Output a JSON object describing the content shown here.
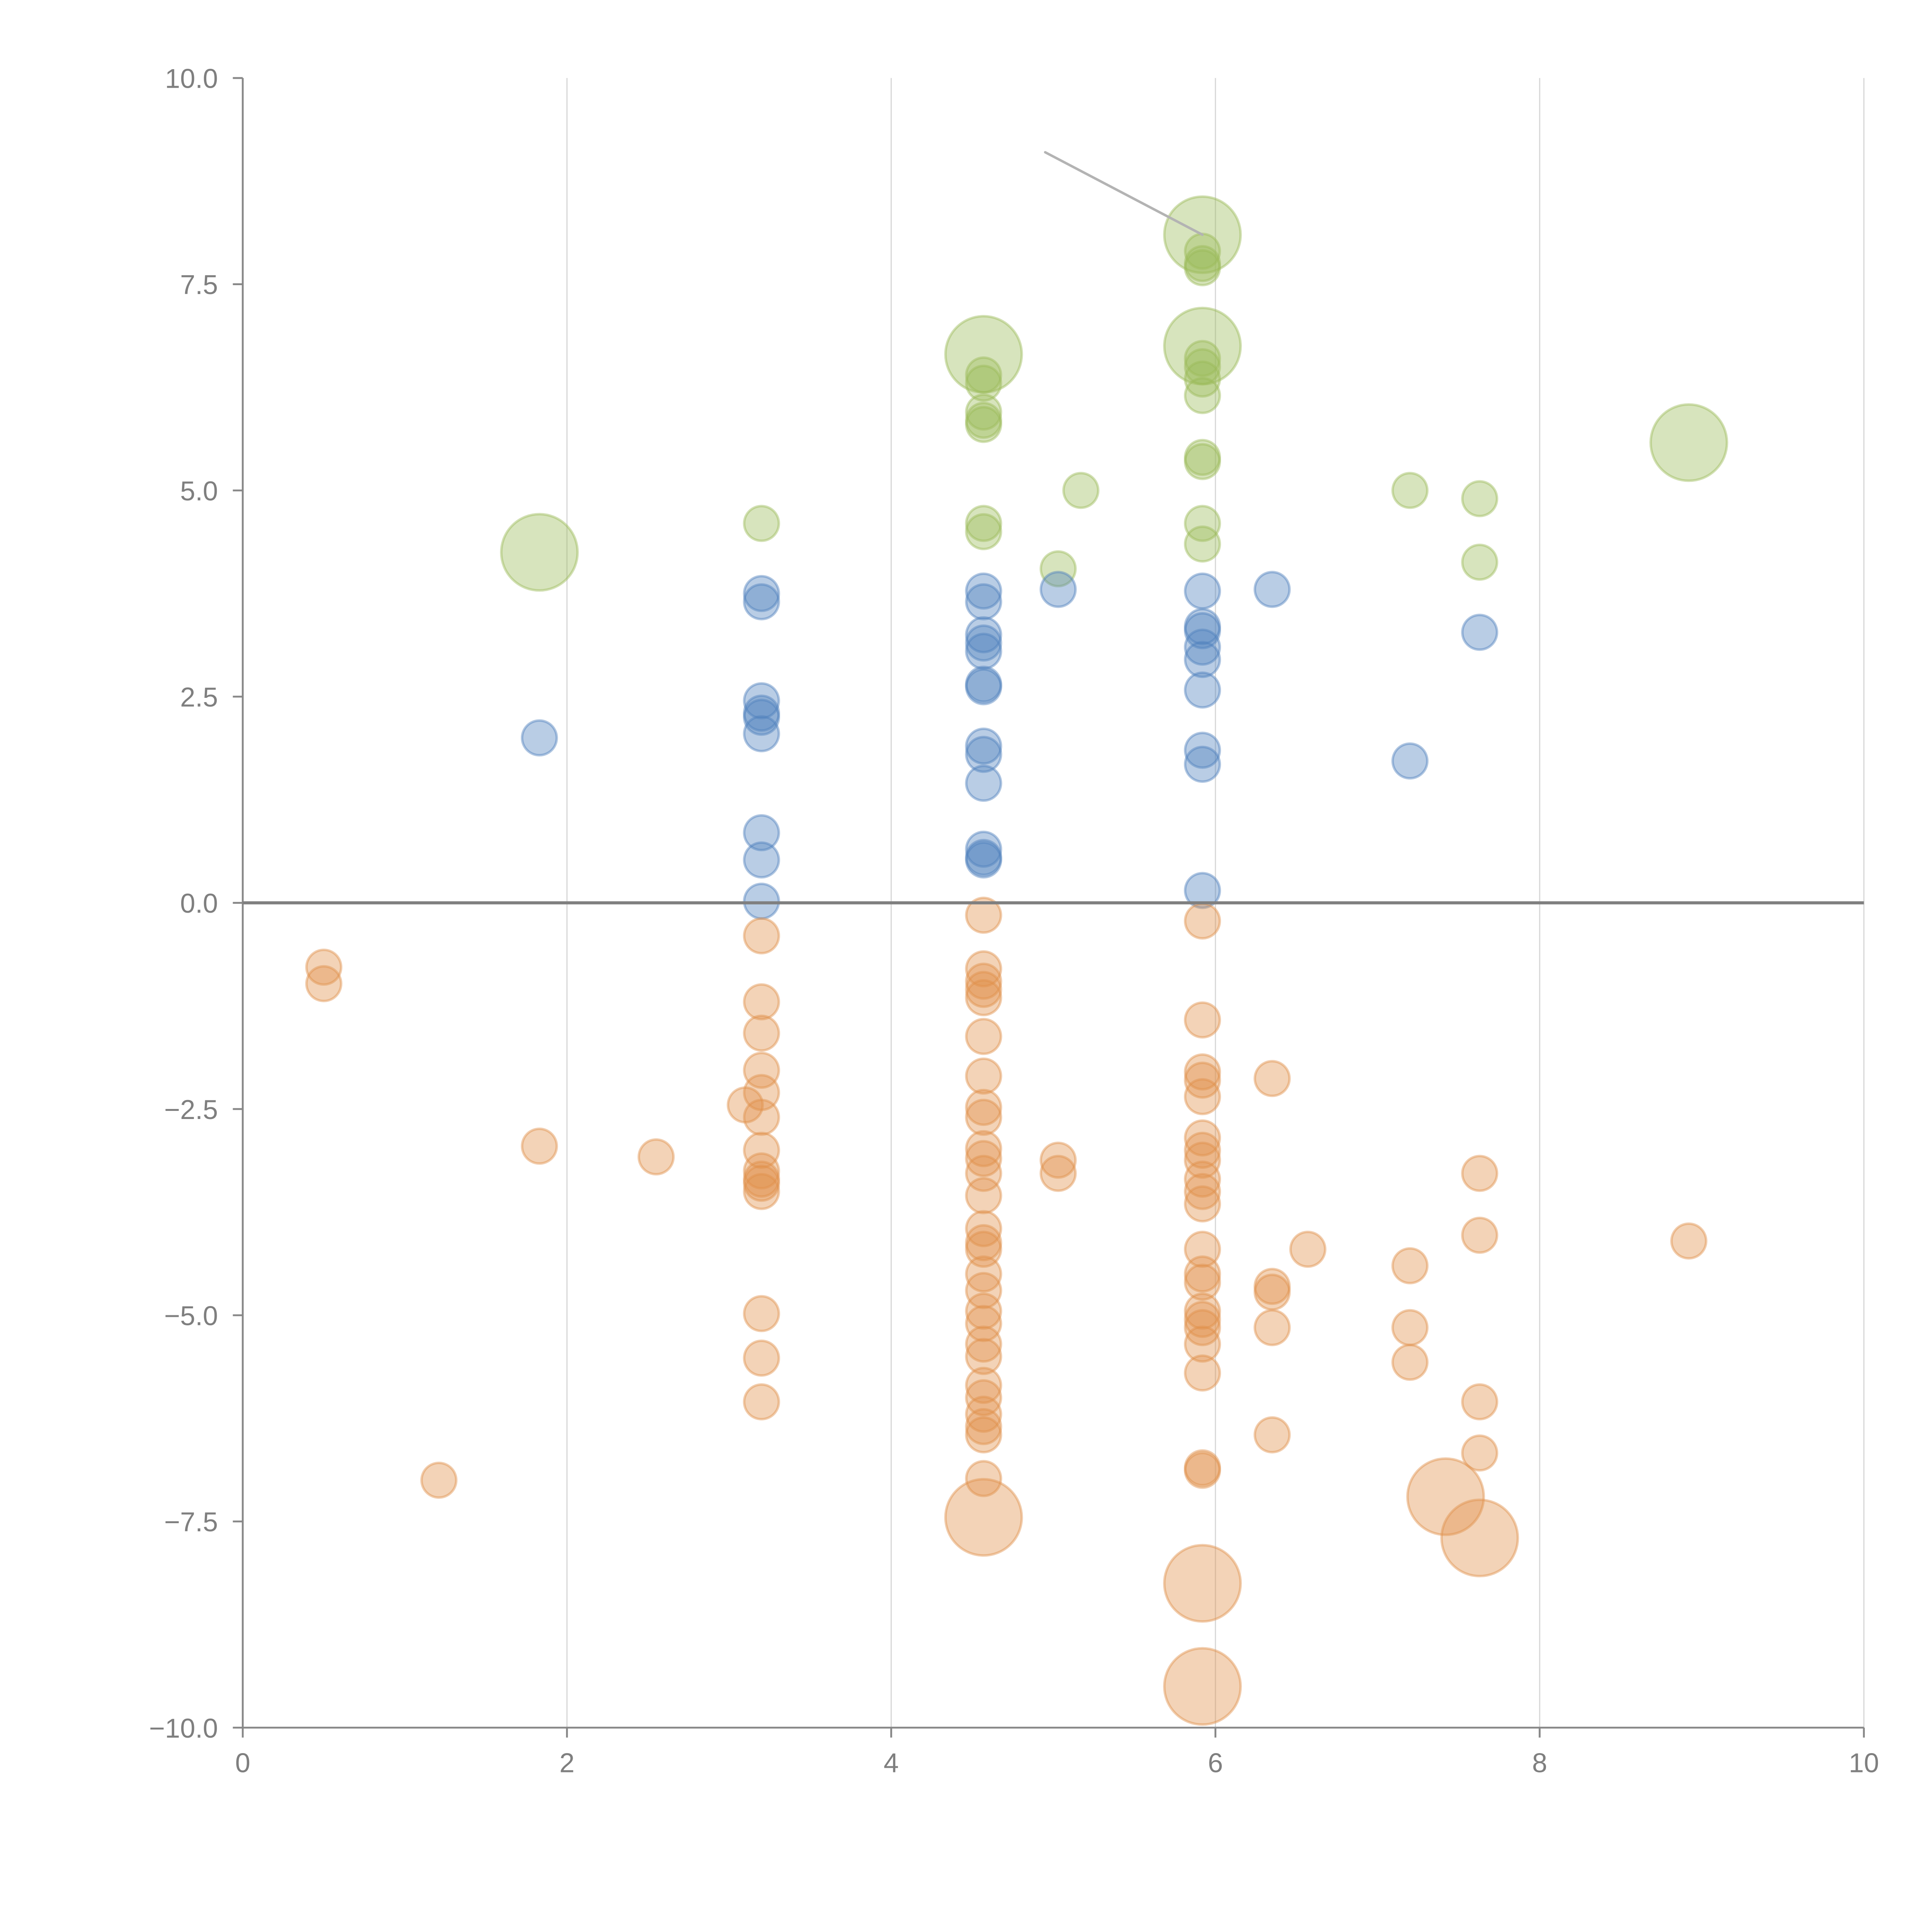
{
  "chart_data": {
    "type": "scatter",
    "subtype": "bubble",
    "title": "",
    "xlabel": "",
    "ylabel": "",
    "xlim": [
      0,
      10
    ],
    "ylim": [
      -10,
      10
    ],
    "x_ticks": [
      "0",
      "2",
      "4",
      "6",
      "8",
      "10"
    ],
    "y_ticks": [
      "10.0",
      "7.5",
      "5.0",
      "2.5",
      "0.0",
      "−2.5",
      "−5.0",
      "−7.5",
      "−10.0"
    ],
    "grid": "vertical",
    "zero_line": true,
    "legend": "none",
    "annotation_leader": {
      "from": [
        4.95,
        9.1
      ],
      "to": [
        5.92,
        8.1
      ]
    },
    "series": [
      {
        "name": "green",
        "color": "#9bbb59",
        "points": [
          [
            1.83,
            4.25,
            2.2
          ],
          [
            3.2,
            4.6,
            1
          ],
          [
            4.57,
            6.65,
            2.2
          ],
          [
            4.57,
            6.4,
            1
          ],
          [
            4.57,
            6.3,
            1
          ],
          [
            4.57,
            5.95,
            1
          ],
          [
            4.57,
            5.85,
            1
          ],
          [
            4.57,
            5.8,
            1
          ],
          [
            4.57,
            4.6,
            1
          ],
          [
            4.57,
            4.5,
            1
          ],
          [
            5.03,
            4.05,
            1
          ],
          [
            5.17,
            5.0,
            1
          ],
          [
            5.92,
            8.1,
            2.2
          ],
          [
            5.92,
            7.9,
            1
          ],
          [
            5.92,
            7.75,
            1
          ],
          [
            5.92,
            7.7,
            1
          ],
          [
            5.92,
            6.75,
            2.2
          ],
          [
            5.92,
            6.6,
            1
          ],
          [
            5.92,
            6.5,
            1
          ],
          [
            5.92,
            6.35,
            1
          ],
          [
            5.92,
            6.15,
            1
          ],
          [
            5.92,
            5.4,
            1
          ],
          [
            5.92,
            5.35,
            1
          ],
          [
            5.92,
            4.6,
            1
          ],
          [
            5.92,
            4.35,
            1
          ],
          [
            7.2,
            5.0,
            1
          ],
          [
            7.63,
            4.9,
            1
          ],
          [
            7.63,
            4.13,
            1
          ],
          [
            8.92,
            5.58,
            2.2
          ]
        ]
      },
      {
        "name": "blue",
        "color": "#4f81bd",
        "points": [
          [
            1.83,
            2.0,
            1
          ],
          [
            3.2,
            3.75,
            1
          ],
          [
            3.2,
            3.65,
            1
          ],
          [
            3.2,
            2.45,
            1
          ],
          [
            3.2,
            2.3,
            1
          ],
          [
            3.2,
            2.25,
            1
          ],
          [
            3.2,
            2.05,
            1
          ],
          [
            3.2,
            0.85,
            1
          ],
          [
            3.2,
            0.52,
            1
          ],
          [
            3.2,
            0.02,
            1
          ],
          [
            4.57,
            3.78,
            1
          ],
          [
            4.57,
            3.65,
            1
          ],
          [
            4.57,
            3.25,
            1
          ],
          [
            4.57,
            3.15,
            1
          ],
          [
            4.57,
            3.05,
            1
          ],
          [
            4.57,
            2.65,
            1
          ],
          [
            4.57,
            2.62,
            1
          ],
          [
            4.57,
            1.9,
            1
          ],
          [
            4.57,
            1.8,
            1
          ],
          [
            4.57,
            1.45,
            1
          ],
          [
            4.57,
            0.65,
            1
          ],
          [
            4.57,
            0.55,
            1
          ],
          [
            4.57,
            0.52,
            1
          ],
          [
            5.03,
            3.8,
            1
          ],
          [
            5.92,
            3.78,
            1
          ],
          [
            5.92,
            3.35,
            1
          ],
          [
            5.92,
            3.3,
            1
          ],
          [
            5.92,
            3.1,
            1
          ],
          [
            5.92,
            2.95,
            1
          ],
          [
            5.92,
            2.58,
            1
          ],
          [
            5.92,
            1.85,
            1
          ],
          [
            5.92,
            1.68,
            1
          ],
          [
            5.92,
            0.15,
            1
          ],
          [
            6.35,
            3.8,
            1
          ],
          [
            7.2,
            1.72,
            1
          ],
          [
            7.63,
            3.28,
            1
          ]
        ]
      },
      {
        "name": "orange",
        "color": "#e0904c",
        "points": [
          [
            0.5,
            -0.78,
            1
          ],
          [
            0.5,
            -0.98,
            1
          ],
          [
            1.21,
            -7.0,
            1
          ],
          [
            1.83,
            -2.95,
            1
          ],
          [
            2.55,
            -3.08,
            1
          ],
          [
            3.1,
            -2.45,
            1
          ],
          [
            3.2,
            -0.4,
            1
          ],
          [
            3.2,
            -1.2,
            1
          ],
          [
            3.2,
            -1.58,
            1
          ],
          [
            3.2,
            -2.03,
            1
          ],
          [
            3.2,
            -2.3,
            1
          ],
          [
            3.2,
            -2.6,
            1
          ],
          [
            3.2,
            -3.0,
            1
          ],
          [
            3.2,
            -3.25,
            1
          ],
          [
            3.2,
            -3.35,
            1
          ],
          [
            3.2,
            -3.4,
            1
          ],
          [
            3.2,
            -3.5,
            1
          ],
          [
            3.2,
            -4.98,
            1
          ],
          [
            3.2,
            -5.52,
            1
          ],
          [
            3.2,
            -6.05,
            1
          ],
          [
            4.57,
            -0.15,
            1
          ],
          [
            4.57,
            -0.8,
            1
          ],
          [
            4.57,
            -0.95,
            1
          ],
          [
            4.57,
            -1.05,
            1
          ],
          [
            4.57,
            -1.15,
            1
          ],
          [
            4.57,
            -1.62,
            1
          ],
          [
            4.57,
            -2.1,
            1
          ],
          [
            4.57,
            -2.48,
            1
          ],
          [
            4.57,
            -2.6,
            1
          ],
          [
            4.57,
            -2.98,
            1
          ],
          [
            4.57,
            -3.1,
            1
          ],
          [
            4.57,
            -3.28,
            1
          ],
          [
            4.57,
            -3.55,
            1
          ],
          [
            4.57,
            -3.95,
            1
          ],
          [
            4.57,
            -4.12,
            1
          ],
          [
            4.57,
            -4.2,
            1
          ],
          [
            4.57,
            -4.5,
            1
          ],
          [
            4.57,
            -4.7,
            1
          ],
          [
            4.57,
            -4.95,
            1
          ],
          [
            4.57,
            -5.1,
            1
          ],
          [
            4.57,
            -5.35,
            1
          ],
          [
            4.57,
            -5.5,
            1
          ],
          [
            4.57,
            -5.85,
            1
          ],
          [
            4.57,
            -6.0,
            1
          ],
          [
            4.57,
            -6.2,
            1
          ],
          [
            4.57,
            -6.35,
            1
          ],
          [
            4.57,
            -6.45,
            1
          ],
          [
            4.57,
            -6.98,
            1
          ],
          [
            4.57,
            -7.45,
            2.2
          ],
          [
            5.03,
            -3.12,
            1
          ],
          [
            5.03,
            -3.28,
            1
          ],
          [
            5.92,
            -0.22,
            1
          ],
          [
            5.92,
            -1.42,
            1
          ],
          [
            5.92,
            -2.05,
            1
          ],
          [
            5.92,
            -2.15,
            1
          ],
          [
            5.92,
            -2.35,
            1
          ],
          [
            5.92,
            -2.85,
            1
          ],
          [
            5.92,
            -3.0,
            1
          ],
          [
            5.92,
            -3.12,
            1
          ],
          [
            5.92,
            -3.35,
            1
          ],
          [
            5.92,
            -3.5,
            1
          ],
          [
            5.92,
            -3.65,
            1
          ],
          [
            5.92,
            -4.2,
            1
          ],
          [
            5.92,
            -4.5,
            1
          ],
          [
            5.92,
            -4.6,
            1
          ],
          [
            5.92,
            -4.95,
            1
          ],
          [
            5.92,
            -5.05,
            1
          ],
          [
            5.92,
            -5.15,
            1
          ],
          [
            5.92,
            -5.35,
            1
          ],
          [
            5.92,
            -5.7,
            1
          ],
          [
            5.92,
            -6.85,
            1
          ],
          [
            5.92,
            -6.88,
            1
          ],
          [
            5.92,
            -8.25,
            2.2
          ],
          [
            5.92,
            -9.5,
            2.2
          ],
          [
            6.35,
            -2.13,
            1
          ],
          [
            6.35,
            -4.65,
            1
          ],
          [
            6.35,
            -4.72,
            1
          ],
          [
            6.35,
            -5.15,
            1
          ],
          [
            6.35,
            -6.45,
            1
          ],
          [
            6.57,
            -4.2,
            1
          ],
          [
            7.2,
            -4.4,
            1
          ],
          [
            7.2,
            -5.15,
            1
          ],
          [
            7.2,
            -5.57,
            1
          ],
          [
            7.42,
            -7.2,
            2.2
          ],
          [
            7.63,
            -3.28,
            1
          ],
          [
            7.63,
            -4.03,
            1
          ],
          [
            7.63,
            -6.05,
            1
          ],
          [
            7.63,
            -6.67,
            1
          ],
          [
            7.63,
            -7.7,
            2.2
          ],
          [
            8.92,
            -4.1,
            1
          ]
        ]
      }
    ]
  }
}
